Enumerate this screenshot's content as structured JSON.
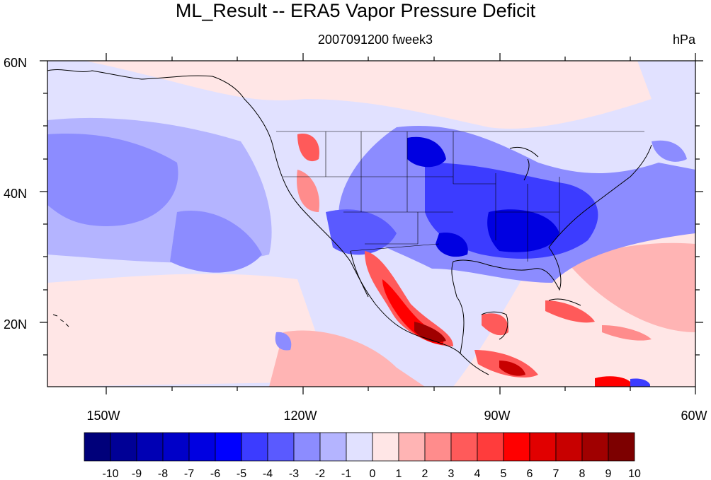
{
  "title": "ML_Result -- ERA5 Vapor Pressure Deficit",
  "subtitle_center": "2007091200 fweek3",
  "subtitle_right": "hPa",
  "map": {
    "lon_range": [
      -160,
      -60
    ],
    "lat_range": [
      10,
      60
    ],
    "lon_ticks": [
      {
        "value": -150,
        "label": "150W"
      },
      {
        "value": -120,
        "label": "120W"
      },
      {
        "value": -90,
        "label": "90W"
      },
      {
        "value": -60,
        "label": "60W"
      }
    ],
    "lat_ticks": [
      {
        "value": 60,
        "label": "60N"
      },
      {
        "value": 40,
        "label": "40N"
      },
      {
        "value": 20,
        "label": "20N"
      }
    ]
  },
  "colorbar": {
    "labels": [
      "-10",
      "-9",
      "-8",
      "-7",
      "-6",
      "-5",
      "-4",
      "-3",
      "-2",
      "-1",
      "0",
      "1",
      "2",
      "3",
      "4",
      "5",
      "6",
      "7",
      "8",
      "9",
      "10"
    ],
    "colors": [
      "#00007a",
      "#000096",
      "#0000b4",
      "#0000c8",
      "#0000e1",
      "#0000ff",
      "#3c3cff",
      "#5a5aff",
      "#8c8cff",
      "#b4b4ff",
      "#e1e1ff",
      "#ffe6e6",
      "#ffb4b4",
      "#ff8c8c",
      "#ff5a5a",
      "#ff3c3c",
      "#ff0000",
      "#e10000",
      "#c80000",
      "#a00000",
      "#7d0000"
    ]
  },
  "field_colors": {
    "ocean_blue_light": "#e1e1ff",
    "ocean_blue_mid": "#b4b4ff",
    "ocean_blue_deep": "#8c8cff",
    "pink_light": "#ffe6e6",
    "pink_mid": "#ffb4b4",
    "red_mid": "#ff5a5a",
    "red_strong": "#ff0000",
    "red_dark": "#a00000",
    "blue_strong": "#3c3cff",
    "blue_dark": "#0000e1"
  }
}
